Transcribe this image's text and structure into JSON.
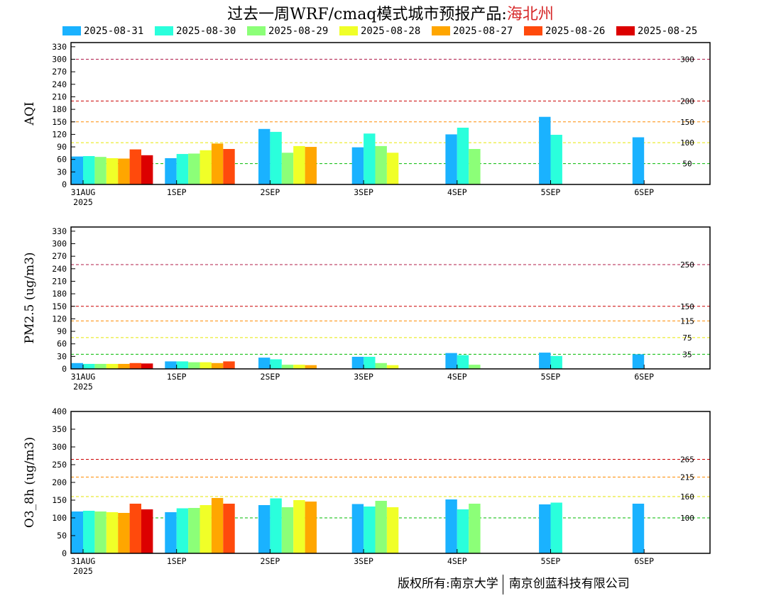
{
  "title": {
    "main": "过去一周WRF/cmaq模式城市预报产品:",
    "region": "海北州"
  },
  "copyright": {
    "owner": "版权所有:南京大学",
    "partner": "南京创蓝科技有限公司"
  },
  "colors": [
    "#1ab2ff",
    "#2affdc",
    "#8cff78",
    "#f0ff28",
    "#ffa600",
    "#ff4a0c",
    "#dc0000"
  ],
  "chart_data": [
    {
      "type": "bar",
      "ylabel": "AQI",
      "ylim": [
        0,
        340
      ],
      "yticks": [
        0,
        30,
        60,
        90,
        120,
        150,
        180,
        210,
        240,
        270,
        300,
        330
      ],
      "x_ticks": [
        "31AUG",
        "1SEP",
        "2SEP",
        "3SEP",
        "4SEP",
        "5SEP",
        "6SEP"
      ],
      "x_year": "2025",
      "thresholds": [
        {
          "value": 300,
          "label": "300",
          "color": "#b01c4a"
        },
        {
          "value": 200,
          "label": "200",
          "color": "#cc0000"
        },
        {
          "value": 150,
          "label": "150",
          "color": "#ff8c00"
        },
        {
          "value": 100,
          "label": "100",
          "color": "#e6e600"
        },
        {
          "value": 50,
          "label": "50",
          "color": "#00bb00"
        }
      ],
      "series": [
        {
          "name": "2025-08-31",
          "values": [
            67,
            63,
            133,
            89,
            120,
            162,
            113
          ]
        },
        {
          "name": "2025-08-30",
          "values": [
            68,
            73,
            126,
            122,
            136,
            119,
            null
          ]
        },
        {
          "name": "2025-08-29",
          "values": [
            66,
            74,
            76,
            92,
            85,
            null,
            null
          ]
        },
        {
          "name": "2025-08-28",
          "values": [
            63,
            82,
            92,
            76,
            null,
            null,
            null
          ]
        },
        {
          "name": "2025-08-27",
          "values": [
            62,
            98,
            90,
            null,
            null,
            null,
            null
          ]
        },
        {
          "name": "2025-08-26",
          "values": [
            84,
            85,
            null,
            null,
            null,
            null,
            null
          ]
        },
        {
          "name": "2025-08-25",
          "values": [
            70,
            null,
            null,
            null,
            null,
            null,
            null
          ]
        }
      ]
    },
    {
      "type": "bar",
      "ylabel": "PM2.5 (ug/m3)",
      "ylim": [
        0,
        340
      ],
      "yticks": [
        0,
        30,
        60,
        90,
        120,
        150,
        180,
        210,
        240,
        270,
        300,
        330
      ],
      "x_ticks": [
        "31AUG",
        "1SEP",
        "2SEP",
        "3SEP",
        "4SEP",
        "5SEP",
        "6SEP"
      ],
      "x_year": "2025",
      "thresholds": [
        {
          "value": 250,
          "label": "250",
          "color": "#b01c4a"
        },
        {
          "value": 150,
          "label": "150",
          "color": "#cc0000"
        },
        {
          "value": 115,
          "label": "115",
          "color": "#ff8c00"
        },
        {
          "value": 75,
          "label": "75",
          "color": "#e6e600"
        },
        {
          "value": 35,
          "label": "35",
          "color": "#00bb00"
        }
      ],
      "series": [
        {
          "name": "2025-08-31",
          "values": [
            14,
            18,
            27,
            29,
            38,
            39,
            35
          ]
        },
        {
          "name": "2025-08-30",
          "values": [
            12,
            18,
            23,
            29,
            33,
            31,
            null
          ]
        },
        {
          "name": "2025-08-29",
          "values": [
            12,
            16,
            10,
            14,
            10,
            null,
            null
          ]
        },
        {
          "name": "2025-08-28",
          "values": [
            12,
            16,
            10,
            9,
            null,
            null,
            null
          ]
        },
        {
          "name": "2025-08-27",
          "values": [
            12,
            14,
            9,
            null,
            null,
            null,
            null
          ]
        },
        {
          "name": "2025-08-26",
          "values": [
            14,
            18,
            null,
            null,
            null,
            null,
            null
          ]
        },
        {
          "name": "2025-08-25",
          "values": [
            13,
            null,
            null,
            null,
            null,
            null,
            null
          ]
        }
      ]
    },
    {
      "type": "bar",
      "ylabel": "O3_8h (ug/m3)",
      "ylim": [
        0,
        400
      ],
      "yticks": [
        0,
        50,
        100,
        150,
        200,
        250,
        300,
        350,
        400
      ],
      "x_ticks": [
        "31AUG",
        "1SEP",
        "2SEP",
        "3SEP",
        "4SEP",
        "5SEP",
        "6SEP"
      ],
      "x_year": "2025",
      "thresholds": [
        {
          "value": 265,
          "label": "265",
          "color": "#cc0000"
        },
        {
          "value": 215,
          "label": "215",
          "color": "#ff8c00"
        },
        {
          "value": 160,
          "label": "160",
          "color": "#e6e600"
        },
        {
          "value": 100,
          "label": "100",
          "color": "#00bb00"
        }
      ],
      "series": [
        {
          "name": "2025-08-31",
          "values": [
            118,
            116,
            136,
            139,
            152,
            138,
            140
          ]
        },
        {
          "name": "2025-08-30",
          "values": [
            120,
            127,
            155,
            132,
            124,
            143,
            null
          ]
        },
        {
          "name": "2025-08-29",
          "values": [
            118,
            128,
            130,
            148,
            140,
            null,
            null
          ]
        },
        {
          "name": "2025-08-28",
          "values": [
            116,
            136,
            150,
            130,
            null,
            null,
            null
          ]
        },
        {
          "name": "2025-08-27",
          "values": [
            114,
            156,
            146,
            null,
            null,
            null,
            null
          ]
        },
        {
          "name": "2025-08-26",
          "values": [
            140,
            140,
            null,
            null,
            null,
            null,
            null
          ]
        },
        {
          "name": "2025-08-25",
          "values": [
            124,
            null,
            null,
            null,
            null,
            null,
            null
          ]
        }
      ]
    }
  ]
}
